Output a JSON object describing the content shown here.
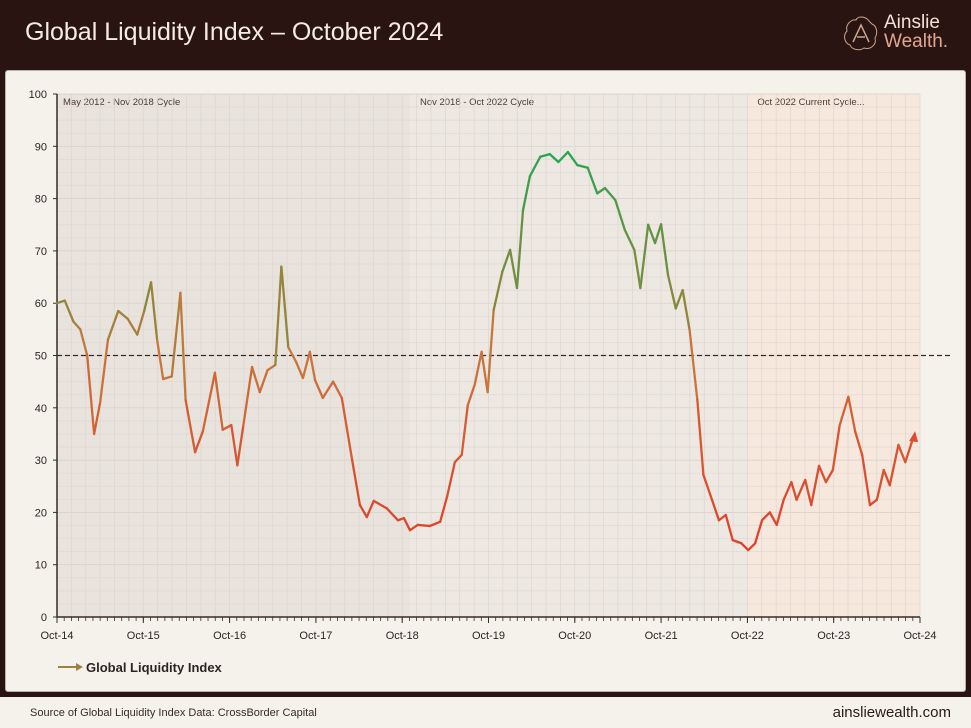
{
  "header": {
    "title": "Global Liquidity Index – October 2024",
    "logo_line1": "Ainslie",
    "logo_line2": "Wealth."
  },
  "footer": {
    "source": "Source of Global Liquidity Index Data: CrossBorder Capital",
    "site": "ainsliewealth.com"
  },
  "chart_data": {
    "type": "line",
    "title": "Global Liquidity Index – October 2024",
    "xlabel": "",
    "ylabel": "",
    "ylim": [
      0,
      100
    ],
    "xlim": [
      2014.75,
      2024.75
    ],
    "yticks": [
      0,
      10,
      20,
      30,
      40,
      50,
      60,
      70,
      80,
      90,
      100
    ],
    "ytick_labels": [
      "0",
      "10",
      "20",
      "30",
      "40",
      "50",
      "60",
      "70",
      "80",
      "90",
      "100"
    ],
    "xticks": [
      2014.75,
      2015.75,
      2016.75,
      2017.75,
      2018.75,
      2019.75,
      2020.75,
      2021.75,
      2022.75,
      2023.75,
      2024.75
    ],
    "xtick_labels": [
      "Oct-14",
      "Oct-15",
      "Oct-16",
      "Oct-17",
      "Oct-18",
      "Oct-19",
      "Oct-20",
      "Oct-21",
      "Oct-22",
      "Oct-23",
      "Oct-24"
    ],
    "grid": true,
    "reference_line": {
      "y": 50,
      "style": "dashed"
    },
    "cycles": [
      {
        "label": "May 2012 - Nov 2018 Cycle",
        "start": 2014.75,
        "end": 2018.84,
        "color": "#e9e3dd"
      },
      {
        "label": "Nov 2018 - Oct 2022 Cycle",
        "start": 2018.84,
        "end": 2022.75,
        "color": "#ede8e2"
      },
      {
        "label": "Oct 2022 Current Cycle...",
        "start": 2022.75,
        "end": 2024.75,
        "color": "#f7e8de"
      }
    ],
    "legend": {
      "position": "bottom-left",
      "entries": [
        "Global Liquidity Index"
      ]
    },
    "series": [
      {
        "name": "Global Liquidity Index",
        "x": [
          2014.75,
          2014.84,
          2014.94,
          2015.02,
          2015.1,
          2015.18,
          2015.25,
          2015.34,
          2015.46,
          2015.57,
          2015.68,
          2015.76,
          2015.84,
          2015.91,
          2015.98,
          2016.08,
          2016.18,
          2016.24,
          2016.35,
          2016.44,
          2016.58,
          2016.67,
          2016.77,
          2016.84,
          2016.91,
          2017.01,
          2017.1,
          2017.19,
          2017.28,
          2017.35,
          2017.43,
          2017.52,
          2017.6,
          2017.68,
          2017.74,
          2017.83,
          2017.95,
          2018.05,
          2018.17,
          2018.26,
          2018.34,
          2018.42,
          2018.57,
          2018.7,
          2018.77,
          2018.84,
          2018.93,
          2019.07,
          2019.19,
          2019.27,
          2019.36,
          2019.44,
          2019.51,
          2019.59,
          2019.67,
          2019.74,
          2019.81,
          2019.91,
          2020.0,
          2020.08,
          2020.15,
          2020.23,
          2020.35,
          2020.46,
          2020.56,
          2020.67,
          2020.78,
          2020.9,
          2021.01,
          2021.1,
          2021.22,
          2021.33,
          2021.44,
          2021.51,
          2021.6,
          2021.68,
          2021.75,
          2021.83,
          2021.92,
          2022.0,
          2022.08,
          2022.17,
          2022.24,
          2022.34,
          2022.42,
          2022.5,
          2022.58,
          2022.68,
          2022.76,
          2022.84,
          2022.92,
          2023.01,
          2023.09,
          2023.17,
          2023.26,
          2023.32,
          2023.42,
          2023.49,
          2023.58,
          2023.66,
          2023.74,
          2023.82,
          2023.92,
          2024.0,
          2024.08,
          2024.17,
          2024.25,
          2024.33,
          2024.4,
          2024.5,
          2024.58,
          2024.67
        ],
        "y": [
          60,
          60.5,
          56.5,
          55,
          50,
          35,
          41,
          53,
          58.5,
          57,
          54,
          58.5,
          64,
          53,
          45.5,
          46,
          62,
          41.5,
          31.5,
          35.5,
          46.7,
          35.8,
          36.7,
          29,
          36.7,
          47.8,
          43,
          47.2,
          48.2,
          67,
          51.6,
          48.8,
          45.7,
          50.7,
          45.3,
          41.9,
          45,
          41.9,
          30,
          21.4,
          19.1,
          22.2,
          20.8,
          18.5,
          18.9,
          16.6,
          17.6,
          17.4,
          18.2,
          23,
          29.6,
          31,
          40.5,
          44.4,
          50.7,
          43,
          58.7,
          66,
          70.2,
          62.9,
          77.8,
          84.3,
          88,
          88.5,
          87,
          88.9,
          86.4,
          85.9,
          81,
          82,
          79.7,
          74,
          70.2,
          62.9,
          75,
          71.5,
          75.1,
          65.4,
          59,
          62.5,
          54.9,
          41.5,
          27.2,
          22.4,
          18.5,
          19.5,
          14.7,
          14.1,
          12.8,
          14.1,
          18.5,
          20,
          17.6,
          22.4,
          25.8,
          22.4,
          26.2,
          21.4,
          28.9,
          25.8,
          28.1,
          36.7,
          42.1,
          35.4,
          31,
          21.4,
          22.4,
          28.1,
          25.2,
          32.9,
          29.6,
          34.2
        ]
      }
    ]
  }
}
